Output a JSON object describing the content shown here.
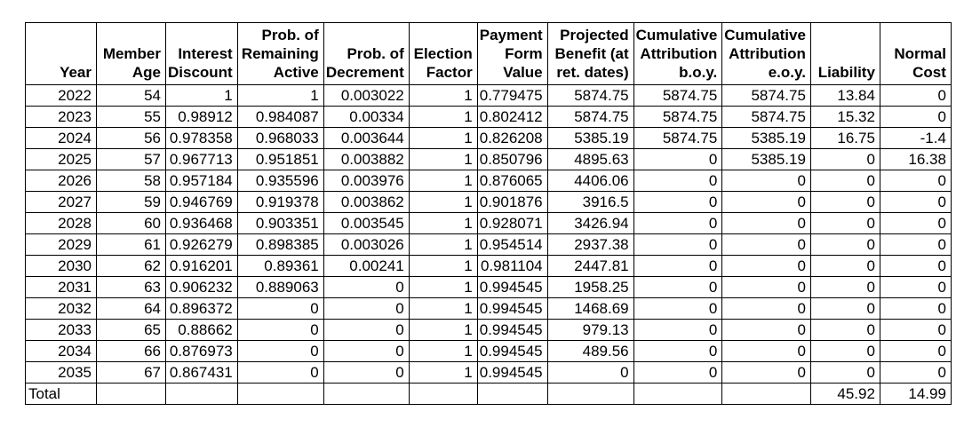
{
  "table": {
    "columns": [
      {
        "id": "year",
        "header_lines": [
          "Year"
        ]
      },
      {
        "id": "member-age",
        "header_lines": [
          "Member",
          "Age"
        ]
      },
      {
        "id": "interest-discount",
        "header_lines": [
          "Interest",
          "Discount"
        ]
      },
      {
        "id": "prob-remaining-active",
        "header_lines": [
          "Prob. of",
          "Remaining",
          "Active"
        ]
      },
      {
        "id": "prob-of-decrement",
        "header_lines": [
          "Prob. of",
          "Decrement"
        ]
      },
      {
        "id": "election-factor",
        "header_lines": [
          "Election",
          "Factor"
        ]
      },
      {
        "id": "payment-form-value",
        "header_lines": [
          "Payment",
          "Form",
          "Value"
        ]
      },
      {
        "id": "projected-benefit",
        "header_lines": [
          "Projected",
          "Benefit (at",
          "ret. dates)"
        ]
      },
      {
        "id": "cumulative-attribution-boy",
        "header_lines": [
          "Cumulative",
          "Attribution",
          "b.o.y."
        ]
      },
      {
        "id": "cumulative-attribution-eoy",
        "header_lines": [
          "Cumulative",
          "Attribution",
          "e.o.y."
        ]
      },
      {
        "id": "liability",
        "header_lines": [
          "Liability"
        ]
      },
      {
        "id": "normal-cost",
        "header_lines": [
          "Normal",
          "Cost"
        ]
      }
    ],
    "rows": [
      [
        "2022",
        "54",
        "1",
        "1",
        "0.003022",
        "1",
        "0.779475",
        "5874.75",
        "5874.75",
        "5874.75",
        "13.84",
        "0"
      ],
      [
        "2023",
        "55",
        "0.98912",
        "0.984087",
        "0.00334",
        "1",
        "0.802412",
        "5874.75",
        "5874.75",
        "5874.75",
        "15.32",
        "0"
      ],
      [
        "2024",
        "56",
        "0.978358",
        "0.968033",
        "0.003644",
        "1",
        "0.826208",
        "5385.19",
        "5874.75",
        "5385.19",
        "16.75",
        "-1.4"
      ],
      [
        "2025",
        "57",
        "0.967713",
        "0.951851",
        "0.003882",
        "1",
        "0.850796",
        "4895.63",
        "0",
        "5385.19",
        "0",
        "16.38"
      ],
      [
        "2026",
        "58",
        "0.957184",
        "0.935596",
        "0.003976",
        "1",
        "0.876065",
        "4406.06",
        "0",
        "0",
        "0",
        "0"
      ],
      [
        "2027",
        "59",
        "0.946769",
        "0.919378",
        "0.003862",
        "1",
        "0.901876",
        "3916.5",
        "0",
        "0",
        "0",
        "0"
      ],
      [
        "2028",
        "60",
        "0.936468",
        "0.903351",
        "0.003545",
        "1",
        "0.928071",
        "3426.94",
        "0",
        "0",
        "0",
        "0"
      ],
      [
        "2029",
        "61",
        "0.926279",
        "0.898385",
        "0.003026",
        "1",
        "0.954514",
        "2937.38",
        "0",
        "0",
        "0",
        "0"
      ],
      [
        "2030",
        "62",
        "0.916201",
        "0.89361",
        "0.00241",
        "1",
        "0.981104",
        "2447.81",
        "0",
        "0",
        "0",
        "0"
      ],
      [
        "2031",
        "63",
        "0.906232",
        "0.889063",
        "0",
        "1",
        "0.994545",
        "1958.25",
        "0",
        "0",
        "0",
        "0"
      ],
      [
        "2032",
        "64",
        "0.896372",
        "0",
        "0",
        "1",
        "0.994545",
        "1468.69",
        "0",
        "0",
        "0",
        "0"
      ],
      [
        "2033",
        "65",
        "0.88662",
        "0",
        "0",
        "1",
        "0.994545",
        "979.13",
        "0",
        "0",
        "0",
        "0"
      ],
      [
        "2034",
        "66",
        "0.876973",
        "0",
        "0",
        "1",
        "0.994545",
        "489.56",
        "0",
        "0",
        "0",
        "0"
      ],
      [
        "2035",
        "67",
        "0.867431",
        "0",
        "0",
        "1",
        "0.994545",
        "0",
        "0",
        "0",
        "0",
        "0"
      ]
    ],
    "total_row": [
      "Total",
      "",
      "",
      "",
      "",
      "",
      "",
      "",
      "",
      "",
      "45.92",
      "14.99"
    ],
    "colors": {
      "border": "#000000",
      "text": "#000000",
      "background": "#ffffff"
    }
  }
}
